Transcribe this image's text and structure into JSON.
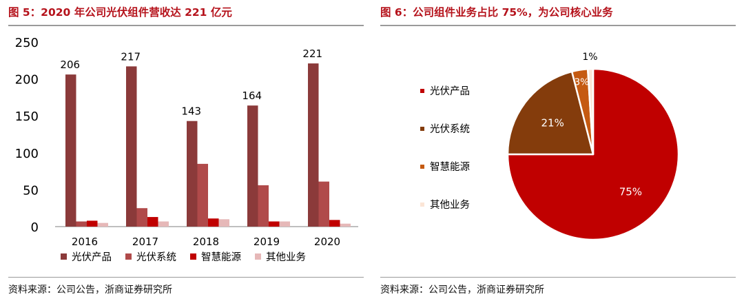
{
  "left": {
    "title": "图 5：2020 年公司光伏组件营收达 221 亿元",
    "source": "资料来源：公司公告，浙商证券研究所"
  },
  "right": {
    "title": "图 6：公司组件业务占比 75%，为公司核心业务",
    "source": "资料来源：公司公告，浙商证券研究所"
  },
  "colors": {
    "title": "#b5121b",
    "pv_product": "#8b3a3a",
    "pv_system": "#b04a4a",
    "smart_energy": "#c00000",
    "other": "#e6b8b8",
    "pie_system": "#843c0c",
    "pie_energy": "#c55a11",
    "pie_other": "#fbe5d6"
  },
  "chart_data": [
    {
      "type": "bar",
      "title": "2020 年公司光伏组件营收达 221 亿元",
      "categories": [
        "2016",
        "2017",
        "2018",
        "2019",
        "2020"
      ],
      "ylim": [
        0,
        250
      ],
      "yticks": [
        0,
        50,
        100,
        150,
        200,
        250
      ],
      "xlabel": "",
      "ylabel": "",
      "grid": false,
      "legend_position": "bottom",
      "series": [
        {
          "name": "光伏产品",
          "values": [
            206,
            217,
            143,
            164,
            221
          ],
          "labels": [
            "206",
            "217",
            "143",
            "164",
            "221"
          ]
        },
        {
          "name": "光伏系统",
          "values": [
            7,
            25,
            85,
            56,
            61
          ]
        },
        {
          "name": "智慧能源",
          "values": [
            8,
            13,
            11,
            7,
            9
          ]
        },
        {
          "name": "其他业务",
          "values": [
            5,
            7,
            10,
            7,
            4
          ]
        }
      ]
    },
    {
      "type": "pie",
      "title": "公司组件业务占比 75%，为公司核心业务",
      "legend_position": "left",
      "slices": [
        {
          "name": "光伏产品",
          "value": 75,
          "label": "75%"
        },
        {
          "name": "光伏系统",
          "value": 21,
          "label": "21%"
        },
        {
          "name": "智慧能源",
          "value": 3,
          "label": "3%"
        },
        {
          "name": "其他业务",
          "value": 1,
          "label": "1%"
        }
      ]
    }
  ]
}
